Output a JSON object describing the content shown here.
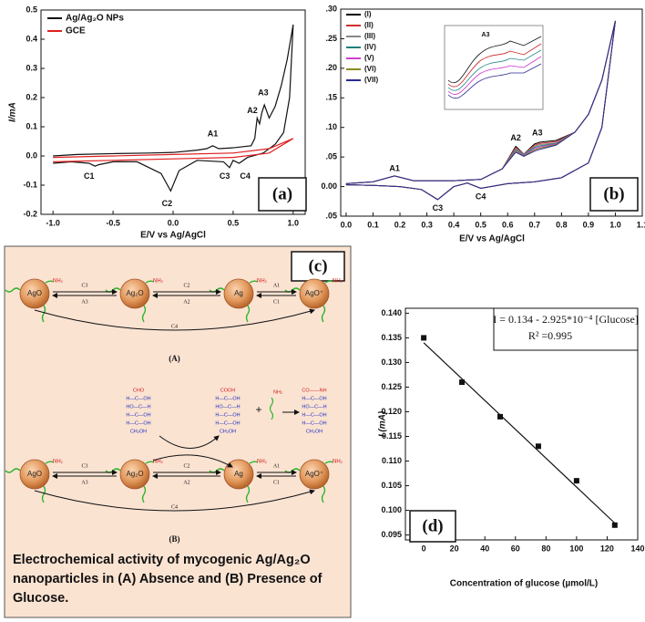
{
  "chart_data": [
    {
      "type": "line",
      "panel_label": "(a)",
      "x_label": "E/V vs Ag/AgCl",
      "y_label": "I/mA",
      "xlim": [
        -1.1,
        1.1
      ],
      "xticks": [
        {
          "value": -1,
          "label": "-1.0"
        },
        -0.5,
        {
          "value": 0,
          "label": "0.0"
        },
        0.5,
        {
          "value": 1,
          "label": "1.0"
        }
      ],
      "ylim": [
        -0.2,
        0.5
      ],
      "yticks": [
        -0.2,
        -0.1,
        {
          "value": 0,
          "label": "0.0"
        },
        0.1,
        0.2,
        0.3,
        0.4,
        0.5
      ],
      "legend": "upper-left",
      "series": [
        {
          "name": "Ag/Ag₂O NPs",
          "color": "#111111",
          "x": [
            -1.0,
            -0.8,
            -0.5,
            -0.2,
            0.0,
            0.2,
            0.28,
            0.33,
            0.38,
            0.5,
            0.65,
            0.68,
            0.7,
            0.72,
            0.74,
            0.76,
            0.8,
            0.85,
            0.9,
            0.95,
            1.0,
            0.97,
            0.92,
            0.85,
            0.75,
            0.62,
            0.55,
            0.5,
            0.47,
            0.42,
            0.2,
            0.05,
            -0.02,
            -0.1,
            -0.3,
            -0.5,
            -0.62,
            -0.65,
            -0.7,
            -0.85,
            -1.0
          ],
          "values": [
            0.0,
            0.005,
            0.008,
            0.01,
            0.012,
            0.02,
            0.025,
            0.035,
            0.025,
            0.028,
            0.035,
            0.06,
            0.13,
            0.11,
            0.15,
            0.175,
            0.13,
            0.17,
            0.24,
            0.33,
            0.45,
            0.2,
            0.08,
            0.04,
            0.01,
            -0.005,
            -0.025,
            -0.015,
            -0.04,
            -0.02,
            -0.015,
            -0.05,
            -0.12,
            -0.06,
            -0.02,
            -0.02,
            -0.03,
            -0.035,
            -0.025,
            -0.02,
            -0.025
          ]
        },
        {
          "name": "GCE",
          "color": "#e02020",
          "x": [
            -1.0,
            -0.5,
            0.0,
            0.5,
            0.8,
            1.0,
            0.8,
            0.5,
            0.0,
            -0.5,
            -1.0
          ],
          "values": [
            -0.005,
            0.0,
            0.005,
            0.01,
            0.025,
            0.06,
            0.01,
            -0.005,
            -0.01,
            -0.015,
            -0.02
          ]
        }
      ],
      "annotations": [
        "A1",
        "A2",
        "A3",
        "C1",
        "C2",
        "C3",
        "C4"
      ]
    },
    {
      "type": "line",
      "panel_label": "(b)",
      "x_label": "E/V vs Ag/AgCl",
      "inset_label": "A3",
      "xlim": [
        -0.02,
        1.1
      ],
      "xticks": [
        {
          "value": 0,
          "label": "0.0"
        },
        0.1,
        0.2,
        0.3,
        0.4,
        0.5,
        0.6,
        0.7,
        0.8,
        0.9,
        {
          "value": 1,
          "label": "1.0"
        },
        1.1
      ],
      "ylim": [
        -0.05,
        0.3
      ],
      "yticks": [
        {
          "value": -0.05,
          "label": ".05"
        },
        {
          "value": 0,
          "label": "0.00"
        },
        {
          "value": 0.05,
          "label": ".05"
        },
        {
          "value": 0.1,
          "label": ".10"
        },
        {
          "value": 0.15,
          "label": ".15"
        },
        {
          "value": 0.2,
          "label": ".20"
        },
        {
          "value": 0.25,
          "label": ".25"
        },
        {
          "value": 0.3,
          "label": ".30"
        }
      ],
      "legend": "upper-left",
      "x": [
        0.0,
        0.1,
        0.18,
        0.25,
        0.4,
        0.5,
        0.58,
        0.63,
        0.66,
        0.7,
        0.72,
        0.78,
        0.85,
        0.9,
        0.95,
        1.0,
        0.95,
        0.9,
        0.8,
        0.7,
        0.6,
        0.5,
        0.45,
        0.4,
        0.34,
        0.28,
        0.2,
        0.1,
        0.0
      ],
      "series": [
        {
          "name": "(I)",
          "color": "#000000",
          "values": [
            0.005,
            0.008,
            0.018,
            0.01,
            0.01,
            0.012,
            0.03,
            0.068,
            0.055,
            0.072,
            0.075,
            0.078,
            0.092,
            0.122,
            0.18,
            0.28,
            0.1,
            0.04,
            0.015,
            0.008,
            0.005,
            -0.003,
            0.006,
            0.0,
            -0.022,
            -0.005,
            0.0,
            0.002,
            0.003
          ]
        },
        {
          "name": "(II)",
          "color": "#d03030",
          "values": [
            0.005,
            0.008,
            0.018,
            0.01,
            0.01,
            0.012,
            0.03,
            0.066,
            0.055,
            0.07,
            0.073,
            0.076,
            0.092,
            0.122,
            0.18,
            0.28,
            0.1,
            0.04,
            0.015,
            0.008,
            0.005,
            -0.003,
            0.006,
            0.0,
            -0.022,
            -0.005,
            0.0,
            0.002,
            0.003
          ]
        },
        {
          "name": "(III)",
          "color": "#888888",
          "values": [
            0.005,
            0.008,
            0.018,
            0.01,
            0.01,
            0.012,
            0.03,
            0.064,
            0.055,
            0.068,
            0.071,
            0.074,
            0.092,
            0.122,
            0.18,
            0.28,
            0.1,
            0.04,
            0.015,
            0.008,
            0.005,
            -0.003,
            0.006,
            0.0,
            -0.022,
            -0.005,
            0.0,
            0.002,
            0.003
          ]
        },
        {
          "name": "(IV)",
          "color": "#208080",
          "values": [
            0.005,
            0.008,
            0.018,
            0.01,
            0.01,
            0.012,
            0.03,
            0.062,
            0.054,
            0.066,
            0.069,
            0.073,
            0.092,
            0.122,
            0.18,
            0.28,
            0.1,
            0.04,
            0.015,
            0.008,
            0.005,
            -0.003,
            0.006,
            0.0,
            -0.022,
            -0.005,
            0.0,
            0.002,
            0.003
          ]
        },
        {
          "name": "(V)",
          "color": "#d040d0",
          "values": [
            0.005,
            0.008,
            0.018,
            0.01,
            0.01,
            0.012,
            0.03,
            0.06,
            0.053,
            0.064,
            0.067,
            0.072,
            0.092,
            0.122,
            0.18,
            0.28,
            0.1,
            0.04,
            0.015,
            0.008,
            0.005,
            -0.003,
            0.006,
            0.0,
            -0.022,
            -0.005,
            0.0,
            0.002,
            0.003
          ]
        },
        {
          "name": "(VI)",
          "color": "#8a8a20",
          "values": [
            0.005,
            0.008,
            0.018,
            0.01,
            0.01,
            0.012,
            0.03,
            0.059,
            0.052,
            0.062,
            0.065,
            0.071,
            0.092,
            0.122,
            0.18,
            0.28,
            0.1,
            0.04,
            0.015,
            0.008,
            0.005,
            -0.003,
            0.006,
            0.0,
            -0.022,
            -0.005,
            0.0,
            0.002,
            0.003
          ]
        },
        {
          "name": "(VII)",
          "color": "#2a2a90",
          "values": [
            0.005,
            0.008,
            0.018,
            0.01,
            0.01,
            0.012,
            0.03,
            0.058,
            0.051,
            0.06,
            0.063,
            0.07,
            0.092,
            0.122,
            0.18,
            0.28,
            0.1,
            0.04,
            0.015,
            0.008,
            0.005,
            -0.003,
            0.006,
            0.0,
            -0.022,
            -0.005,
            0.0,
            0.002,
            0.003
          ]
        }
      ],
      "annotations": [
        "A1",
        "A2",
        "A3",
        "C3",
        "C4"
      ]
    },
    {
      "type": "scatter",
      "panel_label": "(d)",
      "x_label": "Concentration of glucose (µmol/L)",
      "y_label": "I (mA)",
      "xlim": [
        -12,
        140
      ],
      "xticks": [
        0,
        20,
        40,
        60,
        80,
        100,
        120,
        140
      ],
      "ylim": [
        0.094,
        0.141
      ],
      "yticks": [
        0.095,
        {
          "value": 0.1,
          "label": "0.100"
        },
        0.105,
        {
          "value": 0.11,
          "label": "0.110"
        },
        0.115,
        {
          "value": 0.12,
          "label": "0.120"
        },
        0.125,
        {
          "value": 0.13,
          "label": "0.130"
        },
        0.135,
        {
          "value": 0.14,
          "label": "0.140"
        }
      ],
      "x": [
        0,
        25,
        50,
        75,
        100,
        125
      ],
      "values": [
        0.135,
        0.126,
        0.119,
        0.113,
        0.106,
        0.097
      ],
      "color": "#111111",
      "trend": {
        "x": [
          0,
          125
        ],
        "values": [
          0.134,
          0.0974
        ]
      },
      "equation": "I = 0.134 - 2.925*10⁻⁴ [Glucose]",
      "r_squared": "R² =0.995"
    }
  ],
  "scheme": {
    "panel_label": "(c)",
    "ligand": "NH₂",
    "row_a": {
      "nodes": [
        "AgO",
        "Ag₂O",
        "Ag",
        "AgO⁺"
      ],
      "edges": [
        [
          "C3",
          "A3"
        ],
        [
          "C2",
          "A2"
        ],
        [
          "A1",
          "C1"
        ]
      ],
      "bottom": "C4",
      "label": "(A)"
    },
    "row_b": {
      "nodes": [
        "AgO",
        "Ag₂O",
        "Ag",
        "AgO⁺"
      ],
      "edges": [
        [
          "C3",
          "A3"
        ],
        [
          "C2",
          "A2"
        ],
        [
          "A1",
          "C1"
        ]
      ],
      "bottom": "C4",
      "label": "(B)"
    },
    "glucose": [
      "CHO",
      "H—C—OH",
      "HO—C—H",
      "H—C—OH",
      "H—C—OH",
      "CH₂OH"
    ],
    "gluconic_acid": [
      "COOH",
      "H—C—OH",
      "HO—C—H",
      "H—C—OH",
      "H—C—OH",
      "CH₂OH"
    ],
    "plus": "+",
    "amine": "NH₂",
    "product": [
      "CO——NH",
      "H—C—OH",
      "HO—C—H",
      "H—C—OH",
      "H—C—OH",
      "CH₂OH"
    ],
    "caption": "Electrochemical activity of mycogenic Ag/Ag₂O nanoparticles in (A) Absence and (B) Presence of Glucose."
  }
}
